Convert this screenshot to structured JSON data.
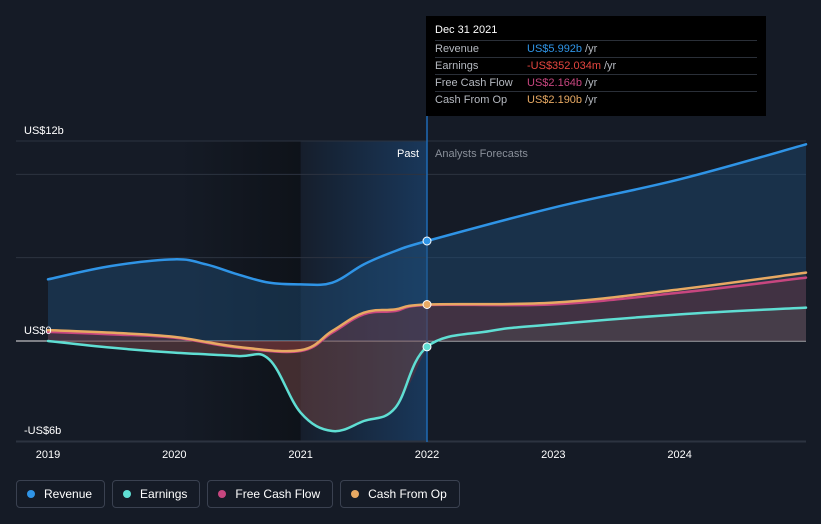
{
  "tooltip": {
    "date": "Dec 31 2021",
    "rows": [
      {
        "label": "Revenue",
        "value": "US$5.992b",
        "unit": "/yr",
        "color": "#2f94e6"
      },
      {
        "label": "Earnings",
        "value": "-US$352.034m",
        "unit": "/yr",
        "color": "#e5463f"
      },
      {
        "label": "Free Cash Flow",
        "value": "US$2.164b",
        "unit": "/yr",
        "color": "#c7467f"
      },
      {
        "label": "Cash From Op",
        "value": "US$2.190b",
        "unit": "/yr",
        "color": "#e7a963"
      }
    ]
  },
  "chart_data": {
    "type": "line",
    "y_tick_labels": [
      "US$12b",
      "US$0",
      "-US$6b"
    ],
    "x_tick_labels": [
      "2019",
      "2020",
      "2021",
      "2022",
      "2023",
      "2024"
    ],
    "ylim": [
      -6,
      12
    ],
    "xlim": [
      2019,
      2025
    ],
    "past_label": "Past",
    "forecast_label": "Analysts Forecasts",
    "divider_x": 2022,
    "series": [
      {
        "name": "Revenue",
        "color": "#2f94e6",
        "points": [
          [
            2019,
            3.7
          ],
          [
            2019.5,
            4.5
          ],
          [
            2020,
            4.9
          ],
          [
            2020.25,
            4.6
          ],
          [
            2020.5,
            4.0
          ],
          [
            2020.75,
            3.5
          ],
          [
            2021,
            3.4
          ],
          [
            2021.25,
            3.5
          ],
          [
            2021.5,
            4.6
          ],
          [
            2021.75,
            5.4
          ],
          [
            2022,
            6.0
          ],
          [
            2023,
            8.0
          ],
          [
            2024,
            9.7
          ],
          [
            2025,
            11.8
          ]
        ]
      },
      {
        "name": "Earnings",
        "color": "#5fded3",
        "points": [
          [
            2019,
            0.0
          ],
          [
            2019.5,
            -0.4
          ],
          [
            2020,
            -0.7
          ],
          [
            2020.5,
            -0.9
          ],
          [
            2020.75,
            -1.1
          ],
          [
            2021,
            -4.3
          ],
          [
            2021.25,
            -5.4
          ],
          [
            2021.5,
            -4.8
          ],
          [
            2021.75,
            -4.0
          ],
          [
            2022,
            -0.35
          ],
          [
            2022.5,
            0.6
          ],
          [
            2023,
            1.0
          ],
          [
            2024,
            1.6
          ],
          [
            2025,
            2.0
          ]
        ]
      },
      {
        "name": "Free Cash Flow",
        "color": "#c7467f",
        "points": [
          [
            2019,
            0.55
          ],
          [
            2019.5,
            0.4
          ],
          [
            2020,
            0.2
          ],
          [
            2020.5,
            -0.4
          ],
          [
            2021,
            -0.6
          ],
          [
            2021.25,
            0.5
          ],
          [
            2021.5,
            1.6
          ],
          [
            2021.75,
            1.8
          ],
          [
            2022,
            2.16
          ],
          [
            2023,
            2.2
          ],
          [
            2024,
            2.9
          ],
          [
            2025,
            3.8
          ]
        ]
      },
      {
        "name": "Cash From Op",
        "color": "#e7a963",
        "points": [
          [
            2019,
            0.65
          ],
          [
            2019.5,
            0.5
          ],
          [
            2020,
            0.25
          ],
          [
            2020.5,
            -0.35
          ],
          [
            2021,
            -0.55
          ],
          [
            2021.25,
            0.6
          ],
          [
            2021.5,
            1.7
          ],
          [
            2021.75,
            1.9
          ],
          [
            2022,
            2.19
          ],
          [
            2023,
            2.3
          ],
          [
            2024,
            3.1
          ],
          [
            2025,
            4.1
          ]
        ]
      }
    ]
  },
  "legend": [
    {
      "label": "Revenue",
      "color": "#2f94e6"
    },
    {
      "label": "Earnings",
      "color": "#5fded3"
    },
    {
      "label": "Free Cash Flow",
      "color": "#c7467f"
    },
    {
      "label": "Cash From Op",
      "color": "#e7a963"
    }
  ]
}
